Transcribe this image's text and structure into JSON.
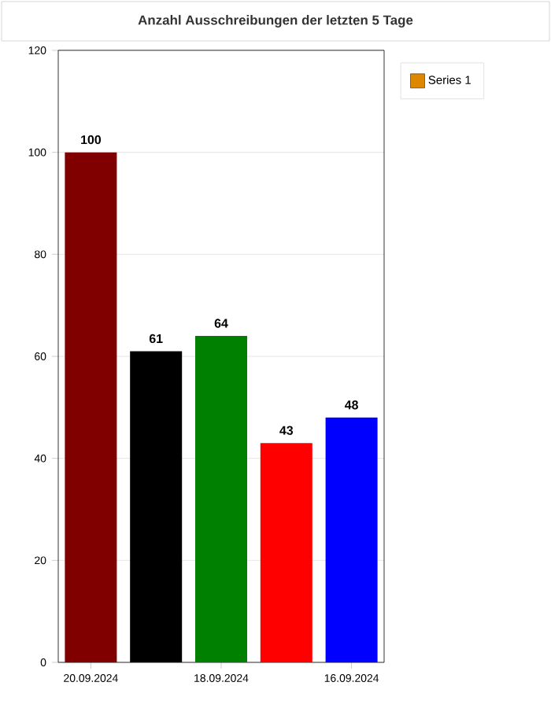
{
  "chart_data": {
    "type": "bar",
    "title": "Anzahl Ausschreibungen der letzten 5 Tage",
    "categories": [
      "20.09.2024",
      null,
      "18.09.2024",
      null,
      "16.09.2024"
    ],
    "series": [
      {
        "name": "Series 1",
        "color": "#dd8800",
        "colors": [
          "#800000",
          "#000000",
          "#008000",
          "#ff0000",
          "#0000ff"
        ],
        "values": [
          100,
          61,
          64,
          43,
          48
        ]
      }
    ],
    "ylim": [
      0,
      120
    ],
    "yticks": [
      0,
      20,
      40,
      60,
      80,
      100,
      120
    ],
    "grid": "y",
    "legend": "top right",
    "data_labels": true
  }
}
